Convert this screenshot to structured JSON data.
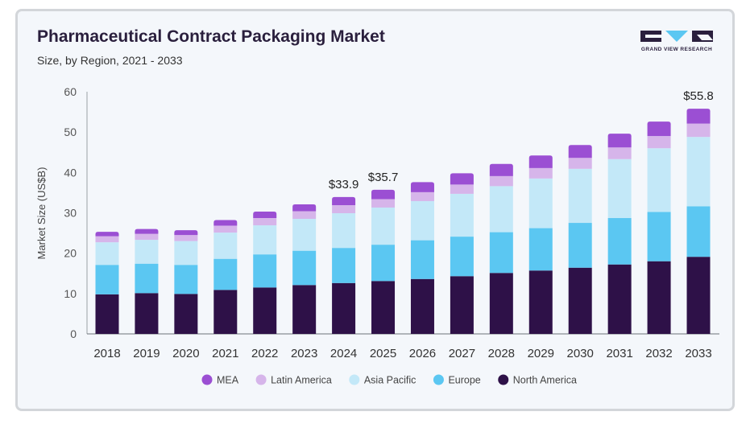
{
  "chart_data": {
    "type": "bar",
    "stacked": true,
    "title": "Pharmaceutical Contract Packaging Market",
    "subtitle": "Size, by Region, 2021 - 2033",
    "ylabel": "Market Size (US$B)",
    "xlabel": "",
    "ylim": [
      0,
      60
    ],
    "yticks": [
      0,
      10,
      20,
      30,
      40,
      50,
      60
    ],
    "grid": false,
    "legend_position": "bottom",
    "categories": [
      "2018",
      "2019",
      "2020",
      "2021",
      "2022",
      "2023",
      "2024",
      "2025",
      "2026",
      "2027",
      "2028",
      "2029",
      "2030",
      "2031",
      "2032",
      "2033"
    ],
    "series": [
      {
        "name": "North America",
        "color": "#2e1148",
        "values": [
          9.8,
          10.1,
          9.9,
          10.9,
          11.5,
          12.1,
          12.6,
          13.1,
          13.6,
          14.3,
          15.1,
          15.7,
          16.4,
          17.2,
          18.0,
          19.1
        ]
      },
      {
        "name": "Europe",
        "color": "#5bc7f2",
        "values": [
          7.3,
          7.3,
          7.2,
          7.7,
          8.2,
          8.5,
          8.7,
          9.0,
          9.6,
          9.8,
          10.1,
          10.5,
          11.1,
          11.5,
          12.2,
          12.5
        ]
      },
      {
        "name": "Asia Pacific",
        "color": "#c3e8f8",
        "values": [
          5.6,
          5.9,
          5.9,
          6.5,
          7.2,
          7.9,
          8.6,
          9.2,
          9.7,
          10.6,
          11.4,
          12.3,
          13.4,
          14.6,
          15.8,
          17.2
        ]
      },
      {
        "name": "Latin America",
        "color": "#d6b5ea",
        "values": [
          1.5,
          1.5,
          1.5,
          1.7,
          1.8,
          1.9,
          2.0,
          2.1,
          2.2,
          2.3,
          2.5,
          2.6,
          2.7,
          2.9,
          3.0,
          3.3
        ]
      },
      {
        "name": "MEA",
        "color": "#9b4fd3",
        "values": [
          1.1,
          1.2,
          1.2,
          1.4,
          1.6,
          1.7,
          2.0,
          2.3,
          2.5,
          2.8,
          3.0,
          3.1,
          3.2,
          3.4,
          3.6,
          3.7
        ]
      }
    ],
    "legend_order": [
      "MEA",
      "Latin America",
      "Asia Pacific",
      "Europe",
      "North America"
    ],
    "annotations": [
      {
        "category": "2024",
        "text": "$33.9"
      },
      {
        "category": "2025",
        "text": "$35.7"
      },
      {
        "category": "2033",
        "text": "$55.8"
      }
    ]
  },
  "logo": {
    "text": "GRAND VIEW RESEARCH",
    "color": "#2a1f3d",
    "accent": "#5bc7f2"
  }
}
